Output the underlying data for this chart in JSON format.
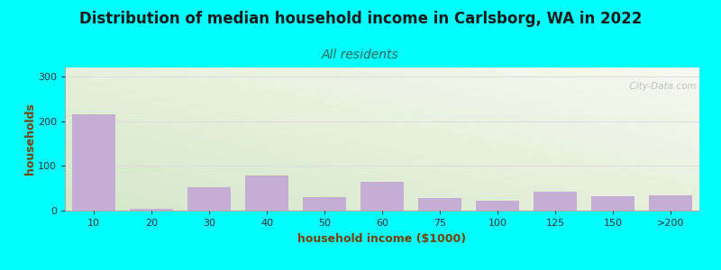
{
  "title": "Distribution of median household income in Carlsborg, WA in 2022",
  "subtitle": "All residents",
  "xlabel": "household income ($1000)",
  "ylabel": "households",
  "background_color": "#00FFFF",
  "bar_color": "#c5aed4",
  "bar_edgecolor": "#c5aed4",
  "categories": [
    "10",
    "20",
    "30",
    "40",
    "50",
    "60",
    "75",
    "100",
    "125",
    "150",
    ">200"
  ],
  "values": [
    215,
    4,
    52,
    78,
    30,
    65,
    28,
    22,
    43,
    32,
    35
  ],
  "ylim": [
    0,
    320
  ],
  "yticks": [
    0,
    100,
    200,
    300
  ],
  "watermark": "  City-Data.com",
  "title_fontsize": 12,
  "subtitle_fontsize": 10,
  "label_fontsize": 9,
  "tick_fontsize": 8,
  "title_color": "#1a1a1a",
  "subtitle_color": "#336655",
  "axis_label_color": "#7B3F00",
  "tick_color": "#333333",
  "grid_color": "#dddddd",
  "gradient_left": "#d4e8c8",
  "gradient_right": "#f8f8f0"
}
